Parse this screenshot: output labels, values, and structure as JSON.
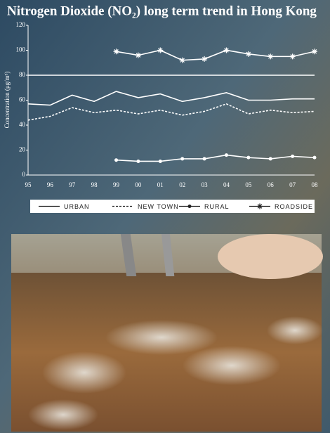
{
  "chart_data": {
    "type": "line",
    "title": "Nitrogen Dioxide (NO₂) long term trend in Hong Kong",
    "y_label": "Concentration (μg/m³)",
    "categories": [
      "95",
      "96",
      "97",
      "98",
      "99",
      "00",
      "01",
      "02",
      "03",
      "04",
      "05",
      "06",
      "07",
      "08"
    ],
    "ylim": [
      0,
      120
    ],
    "yticks": [
      0,
      20,
      40,
      60,
      80,
      100,
      120
    ],
    "hline": 80,
    "series": [
      {
        "name": "URBAN",
        "color": "#ffffff",
        "style": "solid",
        "marker": "none",
        "values": [
          57,
          56,
          64,
          59,
          67,
          62,
          65,
          59,
          62,
          66,
          60,
          60,
          61,
          61
        ]
      },
      {
        "name": "NEW TOWN",
        "color": "#ffffff",
        "style": "dashed",
        "marker": "none",
        "values": [
          44,
          47,
          54,
          50,
          52,
          49,
          52,
          48,
          51,
          57,
          49,
          52,
          50,
          51
        ]
      },
      {
        "name": "RURAL",
        "color": "#ffffff",
        "style": "solid",
        "marker": "circle",
        "values": [
          null,
          null,
          null,
          null,
          12,
          11,
          11,
          13,
          13,
          16,
          14,
          13,
          15,
          14
        ]
      },
      {
        "name": "ROADSIDE",
        "color": "#ffffff",
        "style": "solid",
        "marker": "star",
        "values": [
          null,
          null,
          null,
          null,
          99,
          96,
          100,
          92,
          93,
          100,
          97,
          95,
          95,
          99
        ]
      }
    ]
  }
}
